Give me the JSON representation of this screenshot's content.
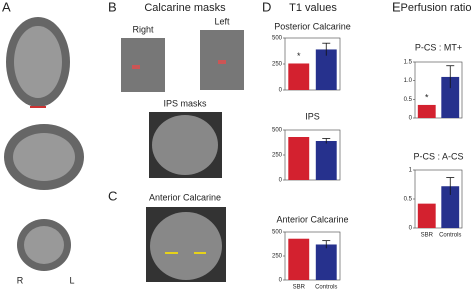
{
  "panels": {
    "a": "A",
    "b": "B",
    "c": "C",
    "d": "D",
    "e": "E"
  },
  "texts": {
    "calcarine_masks": "Calcarine masks",
    "right": "Right",
    "left": "Left",
    "ips_masks": "IPS masks",
    "anterior_calcarine": "Anterior Calcarine",
    "t1_values": "T1 values",
    "perfusion_ratio": "Perfusion ratio",
    "r": "R",
    "l": "L"
  },
  "chart_data": [
    {
      "type": "bar",
      "title": "Posterior Calcarine",
      "categories": [
        null,
        null
      ],
      "series": [
        {
          "colors": [
            "#d3212f",
            "#26318d"
          ],
          "values": [
            255,
            390
          ],
          "errors": [
            null,
            60
          ]
        }
      ],
      "ylim": [
        0,
        500
      ],
      "yticks": [
        0,
        250,
        500
      ],
      "annotation": "*"
    },
    {
      "type": "bar",
      "title": "IPS",
      "categories": [
        null,
        null
      ],
      "series": [
        {
          "colors": [
            "#d3212f",
            "#26318d"
          ],
          "values": [
            430,
            390
          ],
          "errors": [
            null,
            25
          ]
        }
      ],
      "ylim": [
        0,
        500
      ],
      "yticks": [
        0,
        250,
        500
      ]
    },
    {
      "type": "bar",
      "title": "Anterior Calcarine",
      "categories": [
        "SBR",
        "Controls"
      ],
      "series": [
        {
          "colors": [
            "#d3212f",
            "#26318d"
          ],
          "values": [
            430,
            370
          ],
          "errors": [
            null,
            40
          ]
        }
      ],
      "ylim": [
        0,
        500
      ],
      "yticks": [
        0,
        250,
        500
      ]
    },
    {
      "type": "bar",
      "title": "P-CS : MT+",
      "categories": [
        null,
        null
      ],
      "series": [
        {
          "colors": [
            "#d3212f",
            "#26318d"
          ],
          "values": [
            0.35,
            1.1
          ],
          "errors": [
            null,
            0.3
          ]
        }
      ],
      "ylim": [
        0,
        1.5
      ],
      "yticks": [
        0,
        0.5,
        {
          "value": 1,
          "label": "1.0"
        },
        1.5
      ],
      "annotation": "*"
    },
    {
      "type": "bar",
      "title": "P-CS : A-CS",
      "categories": [
        "SBR",
        "Controls"
      ],
      "series": [
        {
          "colors": [
            "#d3212f",
            "#26318d"
          ],
          "values": [
            0.42,
            0.72
          ],
          "errors": [
            null,
            0.15
          ]
        }
      ],
      "ylim": [
        0,
        1
      ],
      "yticks": [
        0,
        0.5,
        1
      ]
    }
  ]
}
